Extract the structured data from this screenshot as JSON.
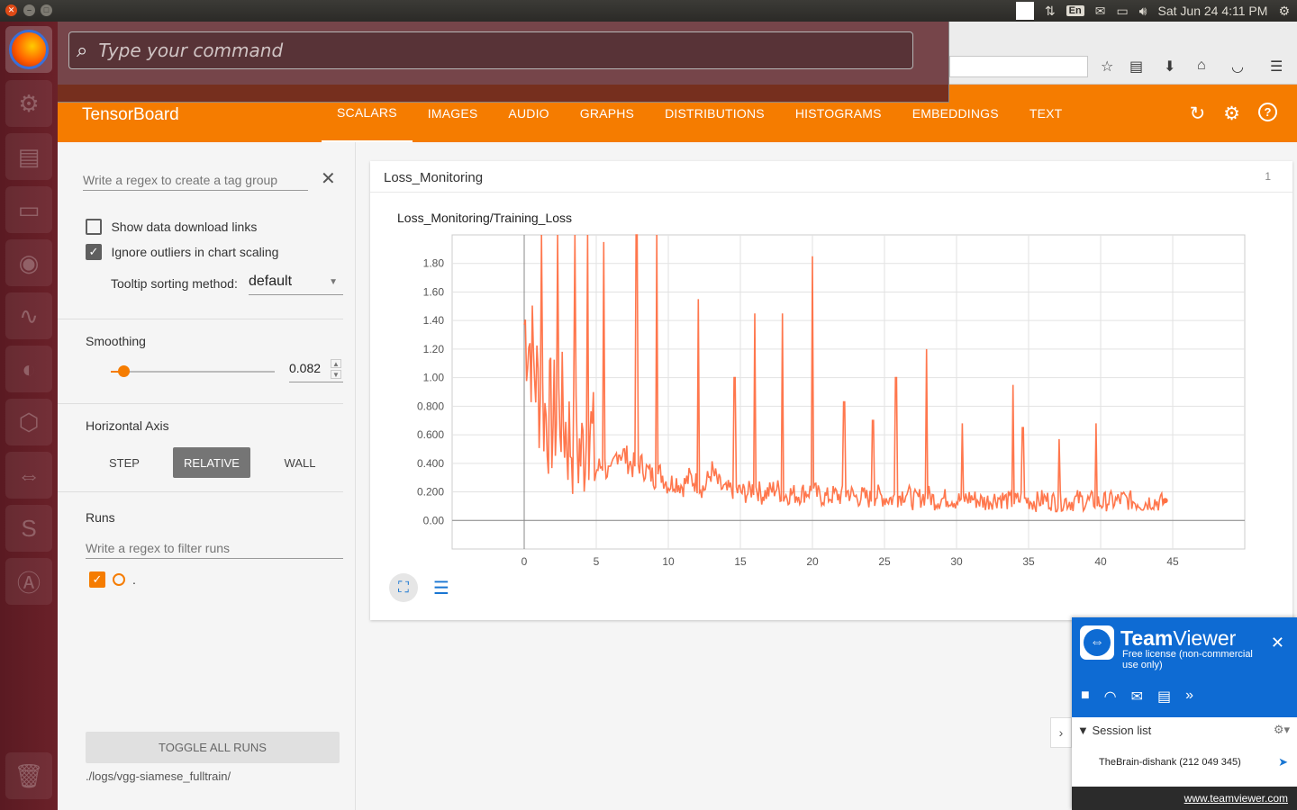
{
  "top_panel": {
    "keyboard_layout": "En",
    "clock": "Sat Jun 24  4:11 PM"
  },
  "hud": {
    "placeholder": "Type your command"
  },
  "header": {
    "title": "TensorBoard",
    "tabs": [
      "SCALARS",
      "IMAGES",
      "AUDIO",
      "GRAPHS",
      "DISTRIBUTIONS",
      "HISTOGRAMS",
      "EMBEDDINGS",
      "TEXT"
    ],
    "active_tab": "SCALARS"
  },
  "sidebar": {
    "tag_regex_placeholder": "Write a regex to create a tag group",
    "show_download_label": "Show data download links",
    "ignore_outliers_label": "Ignore outliers in chart scaling",
    "tooltip_label": "Tooltip sorting method:",
    "tooltip_value": "default",
    "smoothing_label": "Smoothing",
    "smoothing_value": "0.082",
    "horizontal_axis_label": "Horizontal Axis",
    "axis_step": "STEP",
    "axis_relative": "RELATIVE",
    "axis_wall": "WALL",
    "runs_label": "Runs",
    "runs_regex_placeholder": "Write a regex to filter runs",
    "run_name": ".",
    "toggle_all_runs": "TOGGLE ALL RUNS",
    "logdir": "./logs/vgg-siamese_fulltrain/"
  },
  "card": {
    "title": "Loss_Monitoring",
    "count": "1"
  },
  "chart_data": {
    "type": "line",
    "title": "Loss_Monitoring/Training_Loss",
    "xlim": [
      -5,
      50
    ],
    "ylim": [
      -0.2,
      2.0
    ],
    "x_ticks": [
      "0",
      "5",
      "10",
      "15",
      "20",
      "25",
      "30",
      "35",
      "40",
      "45"
    ],
    "y_ticks": [
      "0.00",
      "0.200",
      "0.400",
      "0.600",
      "0.800",
      "1.00",
      "1.20",
      "1.40",
      "1.60",
      "1.80"
    ],
    "grid": true,
    "series_color": "#ff7043",
    "series": [
      {
        "x": [
          0,
          0.5,
          1,
          1.5,
          2,
          2.5,
          3,
          3.5,
          4,
          4.5,
          5,
          5.5,
          6,
          6.5,
          7,
          7.5,
          8,
          8.5,
          9,
          9.5,
          10,
          10.5,
          11,
          11.5,
          12,
          12.5,
          13,
          13.5,
          14,
          14.5,
          15,
          15.5,
          16,
          16.5,
          17,
          17.5,
          18,
          18.5,
          19,
          19.5,
          20,
          20.5,
          21,
          21.5,
          22,
          22.5,
          23,
          23.5,
          24,
          24.5,
          25,
          25.5,
          26,
          26.5,
          27,
          27.5,
          28,
          28.5,
          29,
          29.5,
          30,
          30.5,
          31,
          31.5,
          32,
          32.5,
          33,
          33.5,
          34,
          34.5,
          35,
          35.5,
          36,
          36.5,
          37,
          37.5,
          38,
          38.5,
          39,
          39.5,
          40,
          40.5,
          41,
          41.5,
          42,
          42.5,
          43,
          43.5,
          44,
          44.5
        ],
        "y": [
          1.38,
          1.2,
          0.9,
          0.75,
          0.7,
          0.8,
          0.6,
          0.55,
          0.45,
          0.7,
          0.35,
          0.4,
          0.3,
          0.5,
          0.45,
          0.38,
          0.4,
          0.35,
          0.3,
          0.33,
          0.25,
          0.28,
          0.24,
          0.3,
          0.26,
          0.22,
          0.35,
          0.25,
          0.2,
          0.22,
          0.2,
          0.19,
          0.24,
          0.18,
          0.2,
          0.23,
          0.17,
          0.19,
          0.18,
          0.2,
          0.21,
          0.17,
          0.16,
          0.18,
          0.17,
          0.2,
          0.16,
          0.17,
          0.15,
          0.18,
          0.16,
          0.15,
          0.17,
          0.2,
          0.14,
          0.16,
          0.18,
          0.14,
          0.15,
          0.16,
          0.14,
          0.15,
          0.16,
          0.14,
          0.13,
          0.15,
          0.16,
          0.14,
          0.13,
          0.15,
          0.14,
          0.13,
          0.15,
          0.14,
          0.13,
          0.14,
          0.13,
          0.15,
          0.13,
          0.14,
          0.12,
          0.14,
          0.13,
          0.15,
          0.14,
          0.13,
          0.12,
          0.14,
          0.13,
          0.12
        ]
      }
    ],
    "peaks": [
      {
        "x": 1.2,
        "y": 2.0
      },
      {
        "x": 2.3,
        "y": 2.0
      },
      {
        "x": 3.5,
        "y": 2.0
      },
      {
        "x": 4.4,
        "y": 2.0
      },
      {
        "x": 5.5,
        "y": 1.95
      },
      {
        "x": 7.8,
        "y": 2.0
      },
      {
        "x": 9.2,
        "y": 2.0
      },
      {
        "x": 12.1,
        "y": 1.55
      },
      {
        "x": 14.6,
        "y": 1.0
      },
      {
        "x": 16.0,
        "y": 1.45
      },
      {
        "x": 17.9,
        "y": 1.45
      },
      {
        "x": 20.0,
        "y": 1.85
      },
      {
        "x": 22.2,
        "y": 0.83
      },
      {
        "x": 24.2,
        "y": 0.7
      },
      {
        "x": 25.8,
        "y": 1.0
      },
      {
        "x": 27.9,
        "y": 1.2
      },
      {
        "x": 30.4,
        "y": 0.68
      },
      {
        "x": 33.9,
        "y": 0.95
      },
      {
        "x": 34.6,
        "y": 0.65
      },
      {
        "x": 37.1,
        "y": 0.57
      },
      {
        "x": 39.7,
        "y": 0.68
      }
    ]
  }
}
